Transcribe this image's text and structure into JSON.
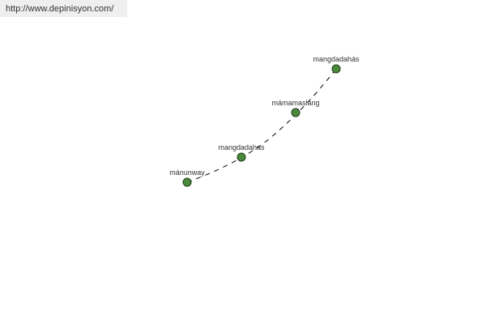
{
  "watermark": "http://www.depinisyon.com/",
  "node_color": "#4a8a3c",
  "nodes": [
    {
      "label": "mánunway"
    },
    {
      "label": "mangdadahas"
    },
    {
      "label": "mámamaslang"
    },
    {
      "label": "mangdadahás"
    }
  ]
}
